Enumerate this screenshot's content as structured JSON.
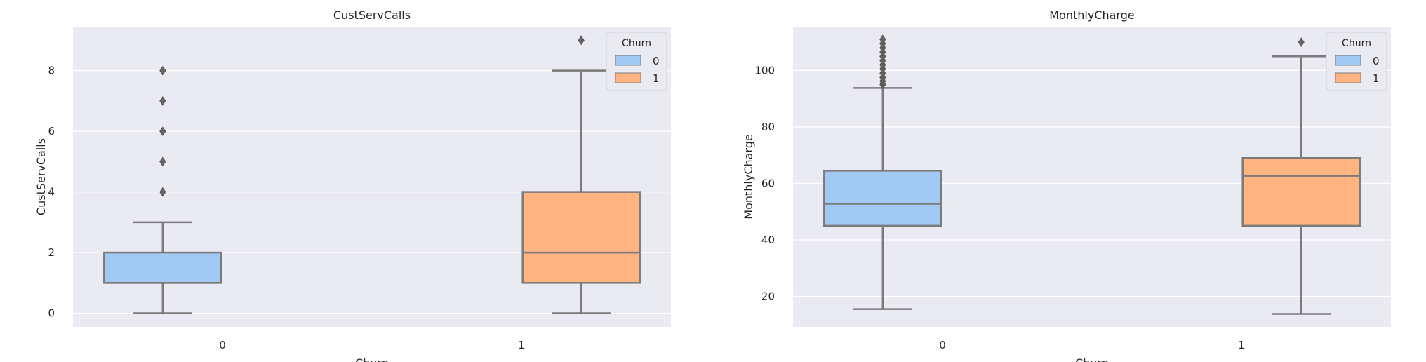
{
  "chart_data": [
    {
      "type": "box",
      "title": "CustServCalls",
      "xlabel": "Churn",
      "ylabel": "CustServCalls",
      "ylim": [
        -0.45,
        9.45
      ],
      "yticks": [
        0,
        2,
        4,
        6,
        8
      ],
      "categories": [
        "0",
        "1"
      ],
      "hue_levels": [
        "0",
        "1"
      ],
      "grid": true,
      "legend": {
        "title": "Churn",
        "entries": [
          "0",
          "1"
        ],
        "placement": "top-right"
      },
      "boxes": [
        {
          "category": "0",
          "hue": "0",
          "min": 0,
          "q1": 1,
          "median": 1,
          "q3": 2,
          "max": 3,
          "outliers": [
            4,
            5,
            6,
            7,
            8
          ]
        },
        {
          "category": "1",
          "hue": "1",
          "min": 0,
          "q1": 1,
          "median": 2,
          "q3": 4,
          "max": 8,
          "outliers": [
            9
          ]
        }
      ]
    },
    {
      "type": "box",
      "title": "MonthlyCharge",
      "xlabel": "Churn",
      "ylabel": "MonthlyCharge",
      "ylim": [
        9.2,
        115.5
      ],
      "yticks": [
        20,
        40,
        60,
        80,
        100
      ],
      "categories": [
        "0",
        "1"
      ],
      "hue_levels": [
        "0",
        "1"
      ],
      "grid": true,
      "legend": {
        "title": "Churn",
        "entries": [
          "0",
          "1"
        ],
        "placement": "top-right"
      },
      "boxes": [
        {
          "category": "0",
          "hue": "0",
          "min": 15.5,
          "q1": 45,
          "median": 52.8,
          "q3": 64.5,
          "max": 93.8,
          "outliers": [
            95,
            96.2,
            97.5,
            99,
            100.5,
            102,
            103.5,
            105,
            106.5,
            108,
            109.5,
            111
          ]
        },
        {
          "category": "1",
          "hue": "1",
          "min": 13.8,
          "q1": 45,
          "median": 62.7,
          "q3": 69,
          "max": 105,
          "outliers": [
            110
          ]
        }
      ]
    }
  ],
  "colors": {
    "hue_0": "#a1c9f4",
    "hue_1": "#ffb482",
    "plot_background": "#eaeaf2",
    "grid": "#ffffff",
    "box_edge": "#7a7a7a"
  }
}
